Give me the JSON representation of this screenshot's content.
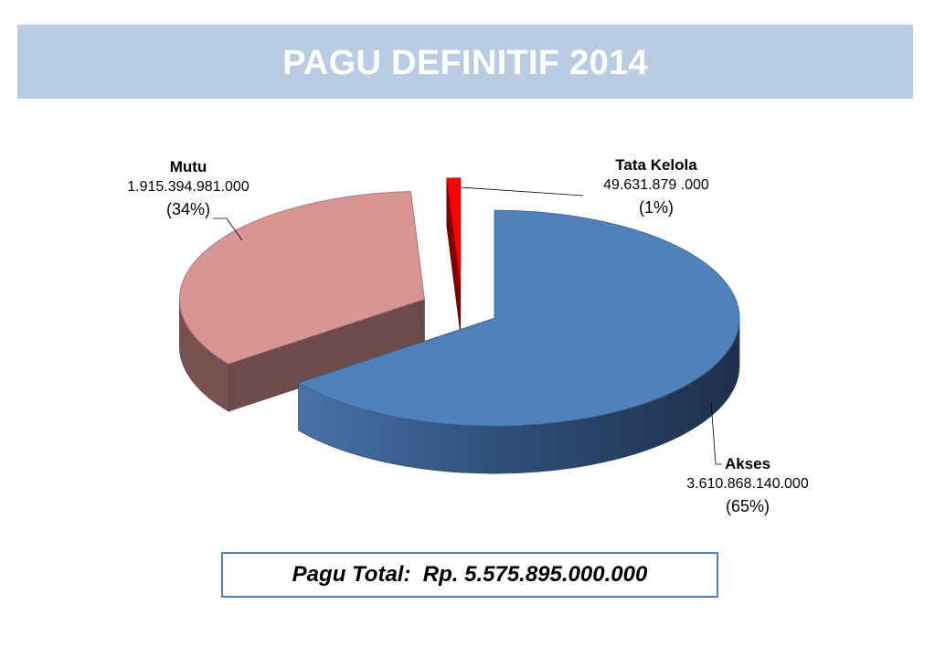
{
  "title": "PAGU DEFINITIF 2014",
  "total_text": "Pagu Total:  Rp. 5.575.895.000.000",
  "chart_data": {
    "type": "pie",
    "title": "PAGU DEFINITIF 2014",
    "slices": [
      {
        "name": "Akses",
        "value_label": "3.610.868.140.000",
        "pct_label": "(65%)",
        "value": 3610868140000,
        "percent": 65,
        "color": "#4f81bd"
      },
      {
        "name": "Mutu",
        "value_label": "1.915.394.981.000",
        "pct_label": "(34%)",
        "value": 1915394981000,
        "percent": 34,
        "color": "#d99594"
      },
      {
        "name": "Tata Kelola",
        "value_label": "49.631.879 .000",
        "pct_label": "(1%)",
        "value": 49631879000,
        "percent": 1,
        "color": "#ff0000"
      }
    ],
    "exploded": true,
    "three_d": true
  }
}
